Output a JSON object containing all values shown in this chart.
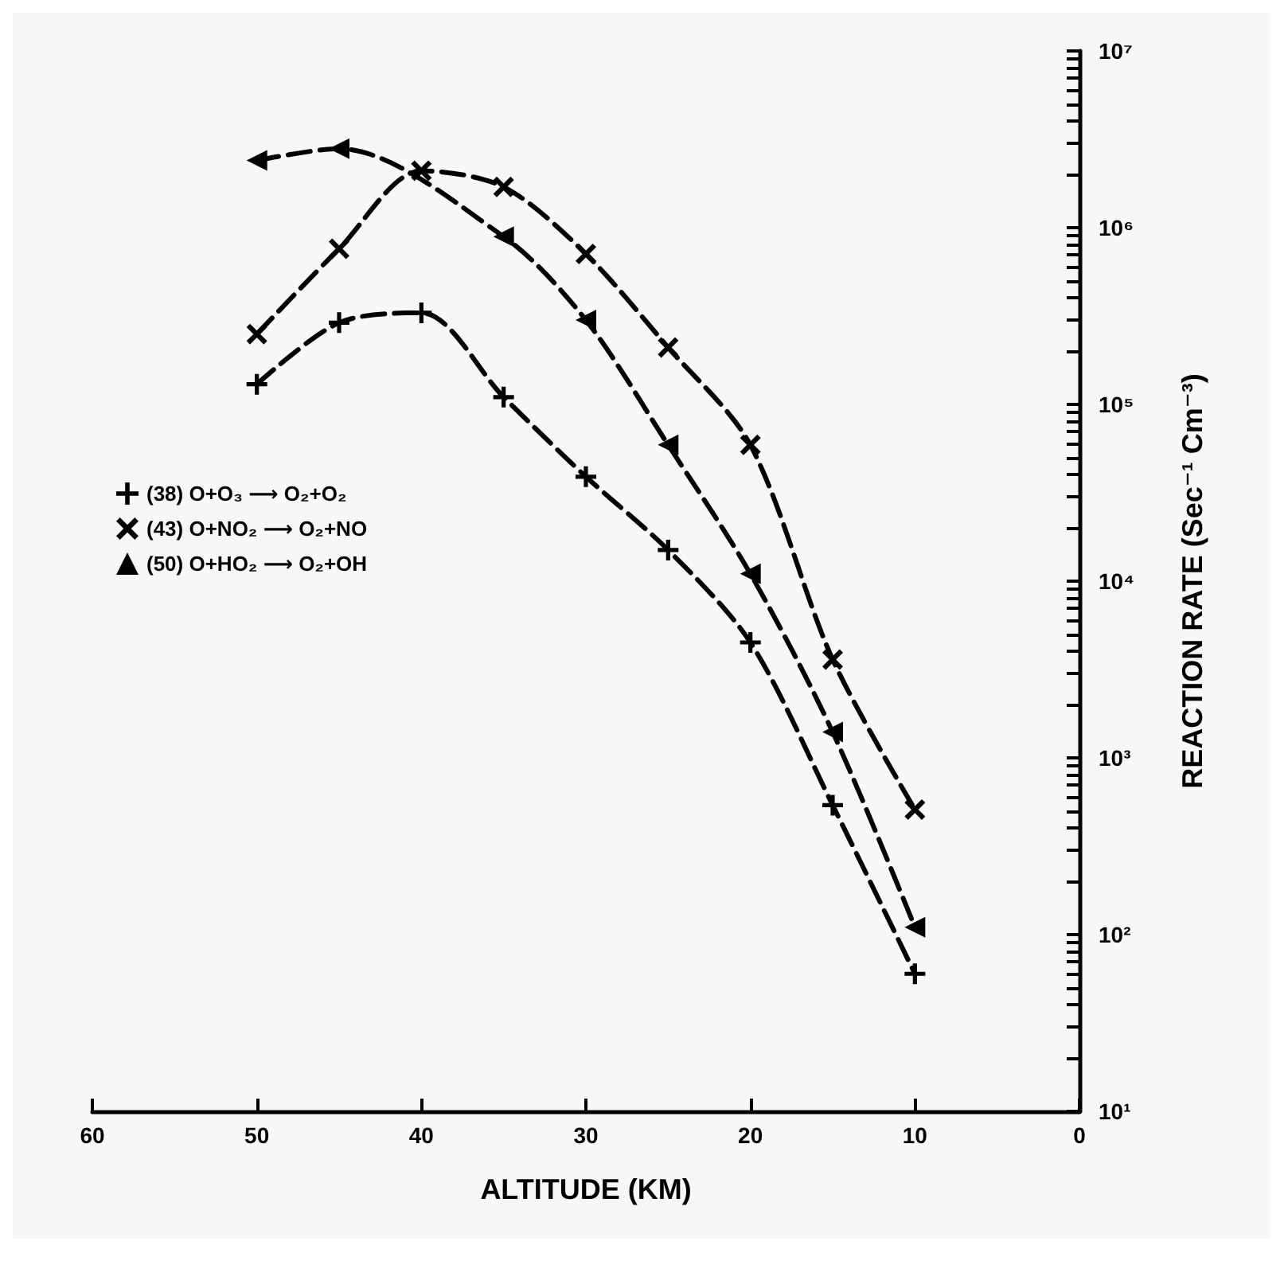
{
  "chart_data": {
    "type": "line",
    "xlabel": "ALTITUDE (KM)",
    "ylabel": "REACTION RATE (Sec⁻¹ Cm⁻³)",
    "xlim": [
      60,
      0
    ],
    "xticks": [
      60,
      50,
      40,
      30,
      20,
      10,
      0
    ],
    "ylim": [
      10,
      10000000
    ],
    "log": "y",
    "yticks": [
      {
        "value": 10,
        "label": "10¹"
      },
      {
        "value": 20,
        "label": null
      },
      {
        "value": 30,
        "label": null
      },
      {
        "value": 40,
        "label": null
      },
      {
        "value": 50,
        "label": null
      },
      {
        "value": 60,
        "label": null
      },
      {
        "value": 70,
        "label": null
      },
      {
        "value": 80,
        "label": null
      },
      {
        "value": 90,
        "label": null
      },
      {
        "value": 100,
        "label": "10²"
      },
      {
        "value": 200,
        "label": null
      },
      {
        "value": 300,
        "label": null
      },
      {
        "value": 400,
        "label": null
      },
      {
        "value": 500,
        "label": null
      },
      {
        "value": 600,
        "label": null
      },
      {
        "value": 700,
        "label": null
      },
      {
        "value": 800,
        "label": null
      },
      {
        "value": 900,
        "label": null
      },
      {
        "value": 1000,
        "label": "10³"
      },
      {
        "value": 2000,
        "label": null
      },
      {
        "value": 3000,
        "label": null
      },
      {
        "value": 4000,
        "label": null
      },
      {
        "value": 5000,
        "label": null
      },
      {
        "value": 6000,
        "label": null
      },
      {
        "value": 7000,
        "label": null
      },
      {
        "value": 8000,
        "label": null
      },
      {
        "value": 9000,
        "label": null
      },
      {
        "value": 10000,
        "label": "10⁴"
      },
      {
        "value": 20000,
        "label": null
      },
      {
        "value": 30000,
        "label": null
      },
      {
        "value": 40000,
        "label": null
      },
      {
        "value": 50000,
        "label": null
      },
      {
        "value": 60000,
        "label": null
      },
      {
        "value": 70000,
        "label": null
      },
      {
        "value": 80000,
        "label": null
      },
      {
        "value": 90000,
        "label": null
      },
      {
        "value": 100000,
        "label": "10⁵"
      },
      {
        "value": 200000,
        "label": null
      },
      {
        "value": 300000,
        "label": null
      },
      {
        "value": 400000,
        "label": null
      },
      {
        "value": 500000,
        "label": null
      },
      {
        "value": 600000,
        "label": null
      },
      {
        "value": 700000,
        "label": null
      },
      {
        "value": 800000,
        "label": null
      },
      {
        "value": 900000,
        "label": null
      },
      {
        "value": 1000000,
        "label": "10⁶"
      },
      {
        "value": 2000000,
        "label": null
      },
      {
        "value": 3000000,
        "label": null
      },
      {
        "value": 4000000,
        "label": null
      },
      {
        "value": 5000000,
        "label": null
      },
      {
        "value": 6000000,
        "label": null
      },
      {
        "value": 7000000,
        "label": null
      },
      {
        "value": 8000000,
        "label": null
      },
      {
        "value": 9000000,
        "label": null
      },
      {
        "value": 10000000,
        "label": "10⁷"
      }
    ],
    "grid": false,
    "legend": "left",
    "line_style": "dashed",
    "series": [
      {
        "name": "(38) O+O₃ ⟶ O₂+O₂",
        "color": "#000000",
        "marker": "plus",
        "x": [
          50,
          45,
          40,
          35,
          30,
          25,
          20,
          15,
          10
        ],
        "values": [
          130000,
          290000,
          330000,
          110000,
          39000,
          15000,
          4500,
          540,
          60
        ]
      },
      {
        "name": "(43) O+NO₂ ⟶ O₂+NO",
        "color": "#000000",
        "marker": "cross",
        "x": [
          50,
          45,
          40,
          35,
          30,
          25,
          20,
          15,
          10
        ],
        "values": [
          250000,
          760000,
          2100000,
          1700000,
          710000,
          210000,
          59000,
          3600,
          510
        ]
      },
      {
        "name": "(50) O+HO₂ ⟶ O₂+OH",
        "color": "#000000",
        "marker": "triangle",
        "x": [
          50,
          45,
          35,
          30,
          25,
          20,
          15,
          10
        ],
        "values": [
          2400000,
          2800000,
          890000,
          300000,
          59000,
          11000,
          1400,
          110
        ]
      }
    ]
  }
}
